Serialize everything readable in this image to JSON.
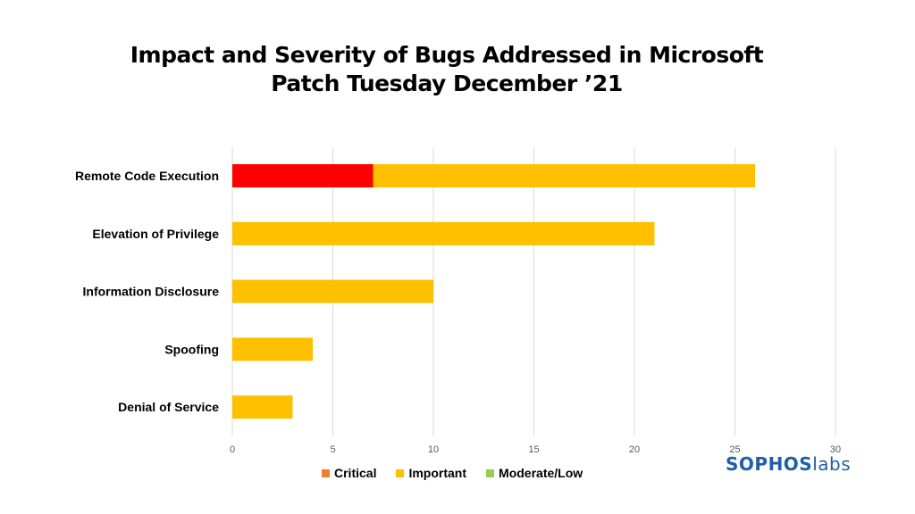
{
  "chart_data": {
    "type": "bar",
    "orientation": "horizontal",
    "stacked": true,
    "title": [
      "Impact and Severity of Bugs Addressed in Microsoft",
      "Patch Tuesday December ’21"
    ],
    "categories": [
      "Remote Code Execution",
      "Elevation of Privilege",
      "Information Disclosure",
      "Spoofing",
      "Denial of Service"
    ],
    "series": [
      {
        "name": "Critical",
        "color": "#ff0000",
        "legend_color": "#ed7d31",
        "values": [
          7,
          0,
          0,
          0,
          0
        ]
      },
      {
        "name": "Important",
        "color": "#ffc000",
        "legend_color": "#ffc000",
        "values": [
          19,
          21,
          10,
          4,
          3
        ]
      },
      {
        "name": "Moderate/Low",
        "color": "#92d050",
        "legend_color": "#92d050",
        "values": [
          0,
          0,
          0,
          0,
          0
        ]
      }
    ],
    "xlim": [
      0,
      30
    ],
    "xticks": [
      0,
      5,
      10,
      15,
      20,
      25,
      30
    ],
    "grid": true,
    "legend_position": "bottom"
  },
  "logo": {
    "part1": "SOPHOS",
    "part2": "labs"
  }
}
